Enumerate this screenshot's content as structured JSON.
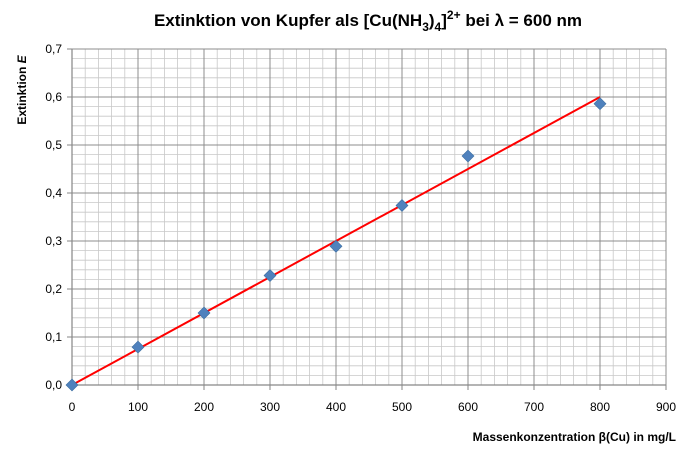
{
  "chart_data": {
    "type": "scatter",
    "title": {
      "prefix": "Extinktion von Kupfer als [Cu(NH",
      "sub1": "3",
      "mid": ")",
      "sub2": "4",
      "end": "]",
      "sup": "2+",
      "suffix": " bei λ = 600 nm"
    },
    "xlabel": "Massenkonzentration  β(Cu) in mg/L",
    "ylabel": {
      "text": "Extinktion ",
      "symbol": "E"
    },
    "xlim": [
      0,
      900
    ],
    "ylim": [
      0,
      0.7
    ],
    "x_ticks": [
      "0",
      "100",
      "200",
      "300",
      "400",
      "500",
      "600",
      "700",
      "800",
      "900"
    ],
    "y_ticks": [
      "0,0",
      "0,1",
      "0,2",
      "0,3",
      "0,4",
      "0,5",
      "0,6",
      "0,7"
    ],
    "grid": true,
    "minor_grid": true,
    "series": [
      {
        "marker": "diamond",
        "color": "#4f81bd",
        "x": [
          0,
          100,
          200,
          300,
          400,
          500,
          600,
          800
        ],
        "y": [
          0.0,
          0.079,
          0.15,
          0.228,
          0.289,
          0.374,
          0.477,
          0.586
        ]
      }
    ],
    "trendline": {
      "color": "#ff0000",
      "x": [
        0,
        800
      ],
      "y": [
        0.0,
        0.6
      ]
    }
  }
}
